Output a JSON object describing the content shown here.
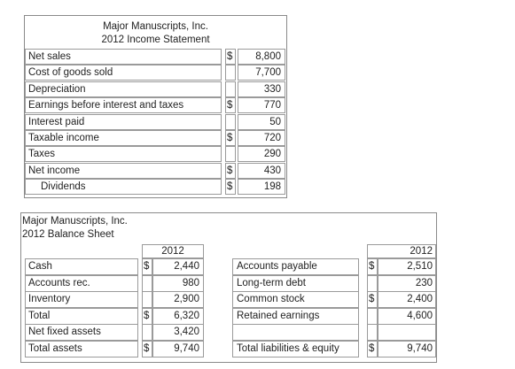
{
  "income": {
    "company": "Major Manuscripts, Inc.",
    "title": "2012 Income Statement",
    "rows": [
      {
        "label": "Net sales",
        "dollar": "$",
        "value": "8,800"
      },
      {
        "label": "Cost of goods sold",
        "dollar": "",
        "value": "7,700"
      },
      {
        "label": "Depreciation",
        "dollar": "",
        "value": "330"
      },
      {
        "label": "Earnings before interest and taxes",
        "dollar": "$",
        "value": "770"
      },
      {
        "label": "Interest paid",
        "dollar": "",
        "value": "50"
      },
      {
        "label": "Taxable income",
        "dollar": "$",
        "value": "720"
      },
      {
        "label": "Taxes",
        "dollar": "",
        "value": "290"
      },
      {
        "label": "Net income",
        "dollar": "$",
        "value": "430"
      },
      {
        "label": "Dividends",
        "dollar": "$",
        "value": "198"
      }
    ]
  },
  "balance": {
    "company": "Major Manuscripts, Inc.",
    "title": "2012 Balance Sheet",
    "year_left": "2012",
    "year_right": "2012",
    "left_rows": [
      {
        "label": "Cash",
        "dollar": "$",
        "value": "2,440"
      },
      {
        "label": "Accounts rec.",
        "dollar": "",
        "value": "980"
      },
      {
        "label": "Inventory",
        "dollar": "",
        "value": "2,900"
      },
      {
        "label": "Total",
        "dollar": "$",
        "value": "6,320"
      },
      {
        "label": "Net fixed assets",
        "dollar": "",
        "value": "3,420"
      },
      {
        "label": "Total assets",
        "dollar": "$",
        "value": "9,740"
      }
    ],
    "right_rows": [
      {
        "label": "Accounts payable",
        "dollar": "$",
        "value": "2,510"
      },
      {
        "label": "Long-term debt",
        "dollar": "",
        "value": "230"
      },
      {
        "label": "Common stock",
        "dollar": "$",
        "value": "2,400"
      },
      {
        "label": "Retained earnings",
        "dollar": "",
        "value": "4,600"
      },
      {
        "label": "",
        "dollar": "",
        "value": ""
      },
      {
        "label": "Total liabilities & equity",
        "dollar": "$",
        "value": "9,740"
      }
    ]
  }
}
